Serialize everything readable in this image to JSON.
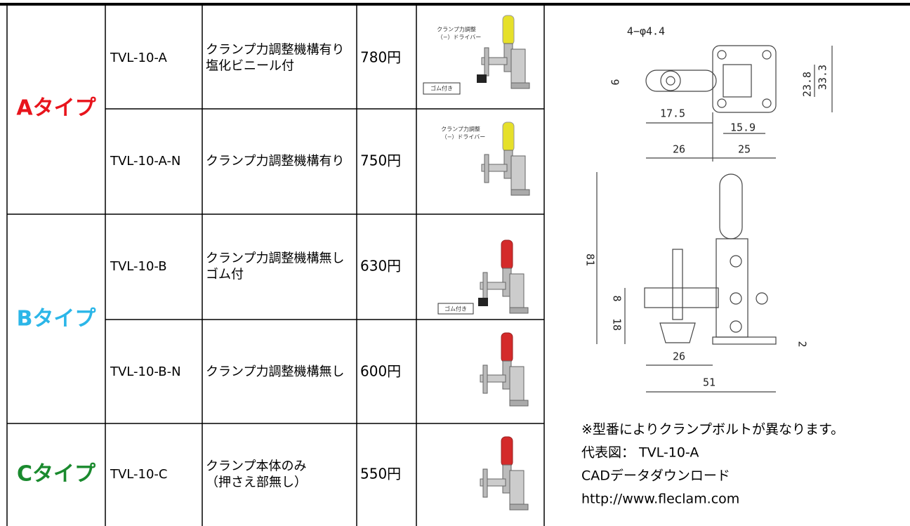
{
  "types": [
    {
      "label": "Aタイプ",
      "color": "#e8141c"
    },
    {
      "label": "Bタイプ",
      "color": "#2bb6e8"
    },
    {
      "label": "Cタイプ",
      "color": "#1a8a2e"
    }
  ],
  "table": {
    "rows": [
      {
        "model": "TVL-10-A",
        "description": [
          "クランプ力調整機構有り",
          "塩化ビニール付"
        ],
        "price": "780円"
      },
      {
        "model": "TVL-10-A-N",
        "description": [
          "クランプ力調整機構有り"
        ],
        "price": "750円"
      },
      {
        "model": "TVL-10-B",
        "description": [
          "クランプ力調整機構無し",
          "ゴム付"
        ],
        "price": "630円"
      },
      {
        "model": "TVL-10-B-N",
        "description": [
          "クランプ力調整機構無し"
        ],
        "price": "600円"
      },
      {
        "model": "TVL-10-C",
        "description": [
          "クランプ本体のみ",
          "（押さえ部無し）"
        ],
        "price": "550円"
      }
    ]
  },
  "image_captions": {
    "adjust": [
      "クランプ力調整",
      "（−）ドライバー"
    ],
    "rubber": "ゴム付き"
  },
  "diagram": {
    "holes": "4−φ4.4",
    "d9": "9",
    "d17_5": "17.5",
    "d15_9": "15.9",
    "d23_8": "23.8",
    "d33_3": "33.3",
    "d26_top": "26",
    "d25": "25",
    "d81": "81",
    "d8": "8",
    "d18": "18",
    "d26_side": "26",
    "d51": "51",
    "d2": "2"
  },
  "notes": [
    "※型番によりクランプボルトが異なります。",
    "代表図：  TVL-10-A",
    "CADデータダウンロード",
    "http://www.fleclam.com"
  ]
}
